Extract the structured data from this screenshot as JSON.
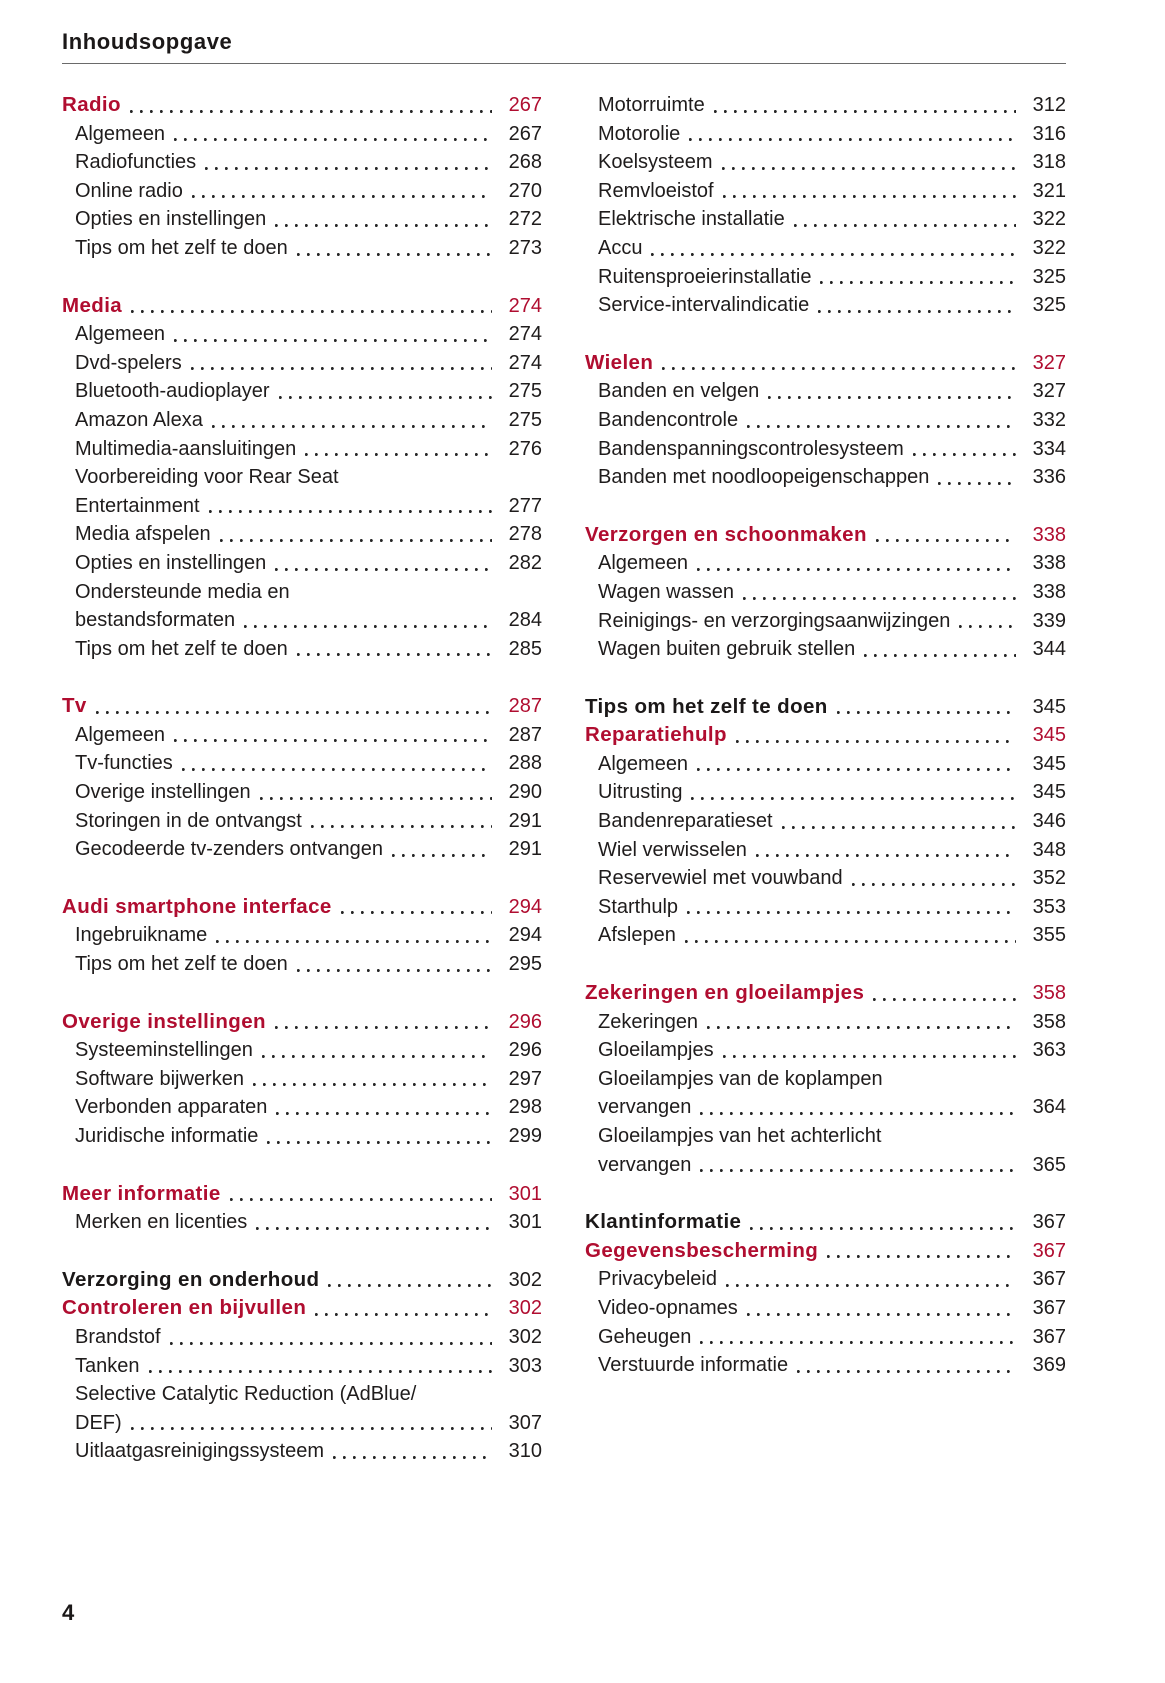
{
  "page": {
    "title": "Inhoudsopgave",
    "folio": "4",
    "colors": {
      "accent": "#b00d30",
      "text": "#1f1c1c",
      "rule": "#6a6a6a",
      "leader_dot": "#262626"
    }
  },
  "columns": [
    {
      "groups": [
        {
          "entries": [
            {
              "style": "chapter",
              "label": "Radio",
              "page": "267"
            },
            {
              "style": "item",
              "label": "Algemeen",
              "page": "267"
            },
            {
              "style": "item",
              "label": "Radiofuncties",
              "page": "268"
            },
            {
              "style": "item",
              "label": "Online radio",
              "page": "270"
            },
            {
              "style": "item",
              "label": "Opties en instellingen",
              "page": "272"
            },
            {
              "style": "item",
              "label": "Tips om het zelf te doen",
              "page": "273"
            }
          ]
        },
        {
          "entries": [
            {
              "style": "chapter",
              "label": "Media",
              "page": "274"
            },
            {
              "style": "item",
              "label": "Algemeen",
              "page": "274"
            },
            {
              "style": "item",
              "label": "Dvd-spelers",
              "page": "274"
            },
            {
              "style": "item",
              "label": "Bluetooth-audioplayer",
              "page": "275"
            },
            {
              "style": "item",
              "label": "Amazon Alexa",
              "page": "275"
            },
            {
              "style": "item",
              "label": "Multimedia-aansluitingen",
              "page": "276"
            },
            {
              "style": "item",
              "label": "Voorbereiding voor Rear Seat",
              "label2": "Entertainment",
              "page": "277"
            },
            {
              "style": "item",
              "label": "Media afspelen",
              "page": "278"
            },
            {
              "style": "item",
              "label": "Opties en instellingen",
              "page": "282"
            },
            {
              "style": "item",
              "label": "Ondersteunde media en",
              "label2": "bestandsformaten",
              "page": "284"
            },
            {
              "style": "item",
              "label": "Tips om het zelf te doen",
              "page": "285"
            }
          ]
        },
        {
          "entries": [
            {
              "style": "chapter",
              "label": "Tv",
              "page": "287"
            },
            {
              "style": "item",
              "label": "Algemeen",
              "page": "287"
            },
            {
              "style": "item",
              "label": "Tv-functies",
              "page": "288"
            },
            {
              "style": "item",
              "label": "Overige instellingen",
              "page": "290"
            },
            {
              "style": "item",
              "label": "Storingen in de ontvangst",
              "page": "291"
            },
            {
              "style": "item",
              "label": "Gecodeerde tv-zenders ontvangen",
              "page": "291"
            }
          ]
        },
        {
          "entries": [
            {
              "style": "chapter",
              "label": "Audi smartphone interface",
              "page": "294"
            },
            {
              "style": "item",
              "label": "Ingebruikname",
              "page": "294"
            },
            {
              "style": "item",
              "label": "Tips om het zelf te doen",
              "page": "295"
            }
          ]
        },
        {
          "entries": [
            {
              "style": "chapter",
              "label": "Overige instellingen",
              "page": "296"
            },
            {
              "style": "item",
              "label": "Systeeminstellingen",
              "page": "296"
            },
            {
              "style": "item",
              "label": "Software bijwerken",
              "page": "297"
            },
            {
              "style": "item",
              "label": "Verbonden apparaten",
              "page": "298"
            },
            {
              "style": "item",
              "label": "Juridische informatie",
              "page": "299"
            }
          ]
        },
        {
          "entries": [
            {
              "style": "chapter",
              "label": "Meer informatie",
              "page": "301"
            },
            {
              "style": "item",
              "label": "Merken en licenties",
              "page": "301"
            }
          ]
        },
        {
          "entries": [
            {
              "style": "part",
              "label": "Verzorging en onderhoud",
              "page": "302"
            },
            {
              "style": "chapter",
              "label": "Controleren en bijvullen",
              "page": "302"
            },
            {
              "style": "item",
              "label": "Brandstof",
              "page": "302"
            },
            {
              "style": "item",
              "label": "Tanken",
              "page": "303"
            },
            {
              "style": "item",
              "label": "Selective Catalytic Reduction (AdBlue/",
              "label2": "DEF)",
              "page": "307"
            },
            {
              "style": "item",
              "label": "Uitlaatgasreinigingssysteem",
              "page": "310"
            }
          ]
        }
      ]
    },
    {
      "groups": [
        {
          "entries": [
            {
              "style": "item",
              "label": "Motorruimte",
              "page": "312"
            },
            {
              "style": "item",
              "label": "Motorolie",
              "page": "316"
            },
            {
              "style": "item",
              "label": "Koelsysteem",
              "page": "318"
            },
            {
              "style": "item",
              "label": "Remvloeistof",
              "page": "321"
            },
            {
              "style": "item",
              "label": "Elektrische installatie",
              "page": "322"
            },
            {
              "style": "item",
              "label": "Accu",
              "page": "322"
            },
            {
              "style": "item",
              "label": "Ruitensproeierinstallatie",
              "page": "325"
            },
            {
              "style": "item",
              "label": "Service-intervalindicatie",
              "page": "325"
            }
          ]
        },
        {
          "entries": [
            {
              "style": "chapter",
              "label": "Wielen",
              "page": "327"
            },
            {
              "style": "item",
              "label": "Banden en velgen",
              "page": "327"
            },
            {
              "style": "item",
              "label": "Bandencontrole",
              "page": "332"
            },
            {
              "style": "item",
              "label": "Bandenspanningscontrolesysteem",
              "page": "334"
            },
            {
              "style": "item",
              "label": "Banden met noodloopeigenschappen",
              "page": "336"
            }
          ]
        },
        {
          "entries": [
            {
              "style": "chapter",
              "label": "Verzorgen en schoonmaken",
              "page": "338"
            },
            {
              "style": "item",
              "label": "Algemeen",
              "page": "338"
            },
            {
              "style": "item",
              "label": "Wagen wassen",
              "page": "338"
            },
            {
              "style": "item",
              "label": "Reinigings- en verzorgingsaanwijzingen",
              "page": "339"
            },
            {
              "style": "item",
              "label": "Wagen buiten gebruik stellen",
              "page": "344"
            }
          ]
        },
        {
          "entries": [
            {
              "style": "part",
              "label": "Tips om het zelf te doen",
              "page": "345"
            },
            {
              "style": "chapter",
              "label": "Reparatiehulp",
              "page": "345"
            },
            {
              "style": "item",
              "label": "Algemeen",
              "page": "345"
            },
            {
              "style": "item",
              "label": "Uitrusting",
              "page": "345"
            },
            {
              "style": "item",
              "label": "Bandenreparatieset",
              "page": "346"
            },
            {
              "style": "item",
              "label": "Wiel verwisselen",
              "page": "348"
            },
            {
              "style": "item",
              "label": "Reservewiel met vouwband",
              "page": "352"
            },
            {
              "style": "item",
              "label": "Starthulp",
              "page": "353"
            },
            {
              "style": "item",
              "label": "Afslepen",
              "page": "355"
            }
          ]
        },
        {
          "entries": [
            {
              "style": "chapter",
              "label": "Zekeringen en gloeilampjes",
              "page": "358"
            },
            {
              "style": "item",
              "label": "Zekeringen",
              "page": "358"
            },
            {
              "style": "item",
              "label": "Gloeilampjes",
              "page": "363"
            },
            {
              "style": "item",
              "label": "Gloeilampjes van de koplampen",
              "label2": "vervangen",
              "page": "364"
            },
            {
              "style": "item",
              "label": "Gloeilampjes van het achterlicht",
              "label2": "vervangen",
              "page": "365"
            }
          ]
        },
        {
          "entries": [
            {
              "style": "part",
              "label": "Klantinformatie",
              "page": "367"
            },
            {
              "style": "chapter",
              "label": "Gegevensbescherming",
              "page": "367"
            },
            {
              "style": "item",
              "label": "Privacybeleid",
              "page": "367"
            },
            {
              "style": "item",
              "label": "Video-opnames",
              "page": "367"
            },
            {
              "style": "item",
              "label": "Geheugen",
              "page": "367"
            },
            {
              "style": "item",
              "label": "Verstuurde informatie",
              "page": "369"
            }
          ]
        }
      ]
    }
  ]
}
